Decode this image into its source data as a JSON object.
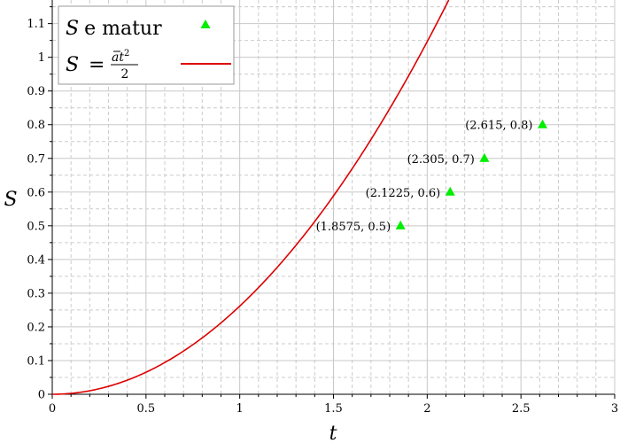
{
  "chart_data": {
    "type": "scatter",
    "xlabel": "t",
    "ylabel": "S",
    "xlim": [
      0,
      3
    ],
    "ylim": [
      0,
      1.17
    ],
    "x_ticks": [
      "0",
      "0.5",
      "1",
      "1.5",
      "2",
      "2.5",
      "3"
    ],
    "y_ticks": [
      "0",
      "0.1",
      "0.2",
      "0.3",
      "0.4",
      "0.5",
      "0.6",
      "0.7",
      "0.8",
      "0.9",
      "1",
      "1.1"
    ],
    "grid": true,
    "legend_position": "top-left",
    "series": [
      {
        "kind": "scatter",
        "marker": "triangle",
        "color": "#00ee00",
        "legend": {
          "symbol": "S",
          "text": "e matur"
        },
        "points": [
          {
            "x": 1.8575,
            "y": 0.5,
            "label": "(1.8575, 0.5)"
          },
          {
            "x": 2.1225,
            "y": 0.6,
            "label": "(2.1225, 0.6)"
          },
          {
            "x": 2.305,
            "y": 0.7,
            "label": "(2.305, 0.7)"
          },
          {
            "x": 2.615,
            "y": 0.8,
            "label": "(2.615, 0.8)"
          }
        ]
      },
      {
        "kind": "line",
        "color": "#dd0000",
        "legend": {
          "lhs": "S",
          "eq": "=",
          "numerator_a": "a",
          "numerator_t": "t",
          "exponent": "2",
          "denominator": "2"
        },
        "coefficient": 0.2616
      }
    ]
  }
}
